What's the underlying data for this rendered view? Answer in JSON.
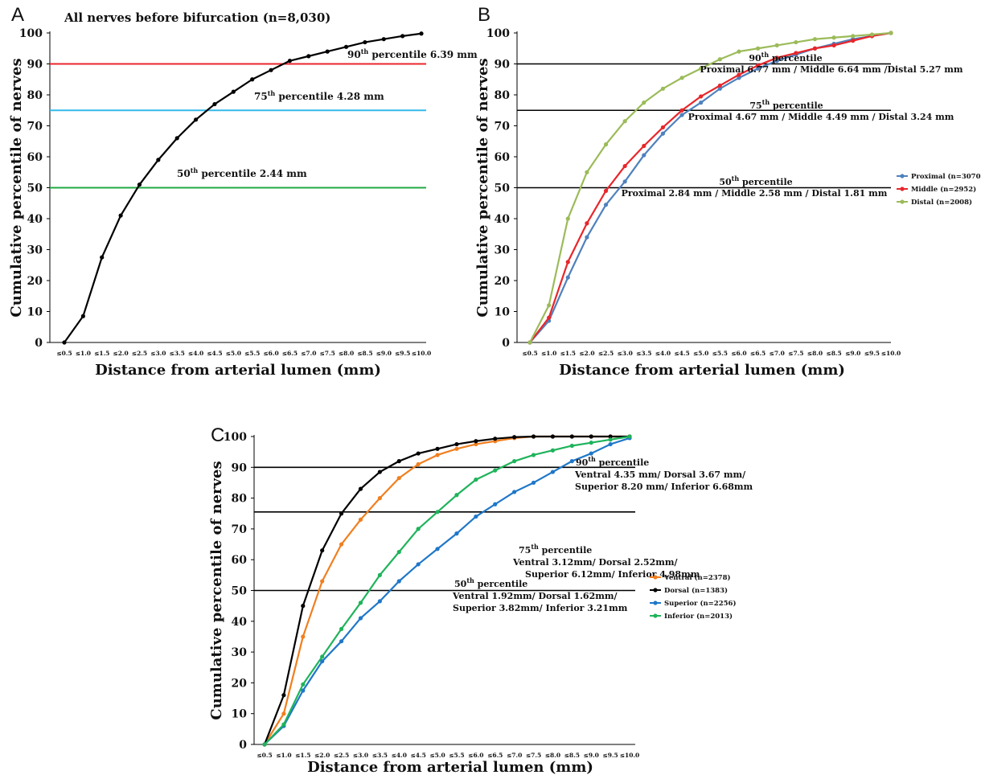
{
  "chart_data": [
    {
      "panel": "A",
      "type": "line",
      "title": "All nerves before bifurcation (n=8,030)",
      "xlabel": "Distance from arterial lumen (mm)",
      "ylabel": "Cumulative percentile of nerves",
      "ylim": [
        0,
        100
      ],
      "yticks": [
        "0",
        "10",
        "20",
        "30",
        "40",
        "50",
        "60",
        "70",
        "80",
        "90",
        "100"
      ],
      "categories": [
        "≤0.5",
        "≤1.0",
        "≤1.5",
        "≤2.0",
        "≤2.5",
        "≤3.0",
        "≤3.5",
        "≤4.0",
        "≤4.5",
        "≤5.0",
        "≤5.5",
        "≤6.0",
        "≤6.5",
        "≤7.0",
        "≤7.5",
        "≤8.0",
        "≤8.5",
        "≤9.0",
        "≤9.5",
        "≤10.0"
      ],
      "series": [
        {
          "color": "#000000",
          "values": [
            0,
            8.5,
            27.5,
            41,
            51,
            59,
            66,
            72,
            77,
            81,
            85,
            88,
            91,
            92.5,
            94,
            95.5,
            97,
            98,
            99,
            99.8
          ]
        }
      ],
      "hlines": [
        {
          "y": 90,
          "color": "#e8262b"
        },
        {
          "y": 75,
          "color": "#35b8ea"
        },
        {
          "y": 50,
          "color": "#22a843"
        }
      ],
      "annotations": [
        {
          "pre": "90",
          "sup": "th",
          "post": " percentile  6.39 mm"
        },
        {
          "pre": "75",
          "sup": "th",
          "post": " percentile 4.28 mm"
        },
        {
          "pre": "50",
          "sup": "th",
          "post": " percentile 2.44 mm"
        }
      ],
      "grid": false
    },
    {
      "panel": "B",
      "type": "line",
      "xlabel": "Distance from arterial lumen (mm)",
      "ylabel": "Cumulative percentile of nerves",
      "ylim": [
        0,
        100
      ],
      "yticks": [
        "0",
        "10",
        "20",
        "30",
        "40",
        "50",
        "60",
        "70",
        "80",
        "90",
        "100"
      ],
      "categories": [
        "≤0.5",
        "≤1.0",
        "≤1.5",
        "≤2.0",
        "≤2.5",
        "≤3.0",
        "≤3.5",
        "≤4.0",
        "≤4.5",
        "≤5.0",
        "≤5.5",
        "≤6.0",
        "≤6.5",
        "≤7.0",
        "≤7.5",
        "≤8.0",
        "≤8.5",
        "≤9.0",
        "≤9.5",
        "≤10.0"
      ],
      "series": [
        {
          "name": "Proximal (n=3070)",
          "color": "#4f81bd",
          "values": [
            0,
            7,
            21,
            34,
            44.5,
            52,
            60.5,
            67.5,
            73.5,
            77.5,
            82,
            85.5,
            88.5,
            91,
            93,
            95,
            96.5,
            98,
            99,
            100
          ]
        },
        {
          "name": "Middle (n=2952)",
          "color": "#e8262b",
          "values": [
            0,
            8,
            26,
            38.5,
            49,
            57,
            63.5,
            69.5,
            75,
            79.5,
            83,
            86.5,
            89.5,
            92,
            93.5,
            95,
            96,
            97.5,
            99,
            100
          ]
        },
        {
          "name": "Distal (n=2008)",
          "color": "#9bbb59",
          "values": [
            0,
            12,
            40,
            55,
            64,
            71.5,
            77.5,
            82,
            85.5,
            88.5,
            91.5,
            94,
            95,
            96,
            97,
            98,
            98.5,
            99,
            99.5,
            100
          ]
        }
      ],
      "hlines": [
        {
          "y": 90,
          "color": "#000000"
        },
        {
          "y": 75,
          "color": "#000000"
        },
        {
          "y": 50,
          "color": "#000000"
        }
      ],
      "annotations": [
        {
          "pre": "90",
          "sup": "th",
          "post": " percentile",
          "line2": "Proximal 6.77 mm / Middle 6.64 mm /Distal 5.27 mm"
        },
        {
          "pre": "75",
          "sup": "th",
          "post": " percentile",
          "line2": "Proximal 4.67 mm / Middle 4.49 mm / Distal 3.24 mm"
        },
        {
          "pre": "50",
          "sup": "th",
          "post": " percentile",
          "line2": "Proximal 2.84 mm / Middle 2.58 mm / Distal 1.81 mm"
        }
      ],
      "legend": "right",
      "grid": false
    },
    {
      "panel": "C",
      "type": "line",
      "xlabel": "Distance from arterial lumen (mm)",
      "ylabel": "Cumulative percentile of nerves",
      "ylim": [
        0,
        100
      ],
      "yticks": [
        "0",
        "10",
        "20",
        "30",
        "40",
        "50",
        "60",
        "70",
        "80",
        "90",
        "100"
      ],
      "categories": [
        "≤0.5",
        "≤1.0",
        "≤1.5",
        "≤2.0",
        "≤2.5",
        "≤3.0",
        "≤3.5",
        "≤4.0",
        "≤4.5",
        "≤5.0",
        "≤5.5",
        "≤6.0",
        "≤6.5",
        "≤7.0",
        "≤7.5",
        "≤8.0",
        "≤8.5",
        "≤9.0",
        "≤9.5",
        "≤10.0"
      ],
      "series": [
        {
          "name": "Ventral (n=2378)",
          "color": "#f07f1f",
          "values": [
            0,
            10,
            35,
            53,
            65,
            73,
            80,
            86.5,
            91,
            94,
            96,
            97.5,
            98.5,
            99.5,
            100,
            100,
            100,
            100,
            100,
            100
          ]
        },
        {
          "name": "Dorsal (n=1383)",
          "color": "#000000",
          "values": [
            0,
            16,
            45,
            63,
            75,
            83,
            88.5,
            92,
            94.5,
            96,
            97.5,
            98.5,
            99.3,
            99.8,
            100,
            100,
            100,
            100,
            100,
            100
          ]
        },
        {
          "name": "Superior (n=2256)",
          "color": "#1f77c8",
          "values": [
            0,
            6,
            17.5,
            27,
            33.5,
            41,
            46.5,
            53,
            58.5,
            63.5,
            68.5,
            74,
            78,
            82,
            85,
            88.5,
            92,
            94.5,
            97.5,
            99.5
          ]
        },
        {
          "name": "Inferior (n=2013)",
          "color": "#1fb35b",
          "values": [
            0,
            6.5,
            19.5,
            28.5,
            37.5,
            46,
            55,
            62.5,
            70,
            75.5,
            81,
            86,
            89,
            92,
            94,
            95.5,
            97,
            98,
            99,
            100
          ]
        }
      ],
      "hlines": [
        {
          "y": 90,
          "color": "#000000"
        },
        {
          "y": 75.5,
          "color": "#000000"
        },
        {
          "y": 50,
          "color": "#000000"
        }
      ],
      "annotations": [
        {
          "pre": "90",
          "sup": "th",
          "post": " percentile",
          "line2": "Ventral 4.35 mm/ Dorsal 3.67 mm/",
          "line3": "Superior 8.20 mm/ Inferior 6.68mm"
        },
        {
          "pre": "75",
          "sup": "th",
          "post": " percentile",
          "line2": "Ventral 3.12mm/ Dorsal 2.52mm/",
          "line3": "Superior 6.12mm/ Inferior 4.98mm"
        },
        {
          "pre": "50",
          "sup": "th",
          "post": " percentile",
          "line2": "Ventral 1.92mm/ Dorsal 1.62mm/",
          "line3": "Superior 3.82mm/ Inferior 3.21mm"
        }
      ],
      "legend": "right",
      "grid": false
    }
  ]
}
